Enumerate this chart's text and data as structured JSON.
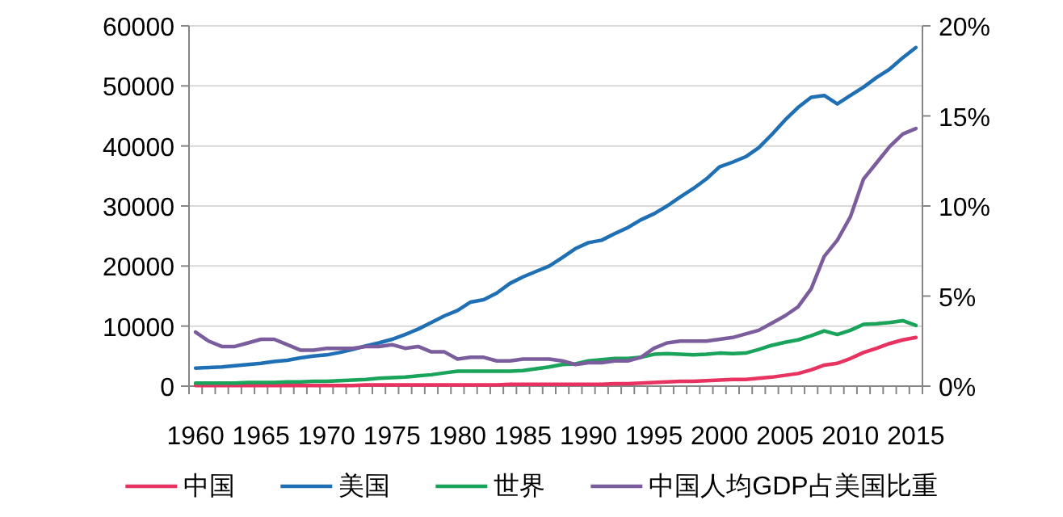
{
  "chart_data": {
    "type": "line",
    "categories": [
      "1960",
      null,
      null,
      null,
      null,
      "1965",
      null,
      null,
      null,
      null,
      "1970",
      null,
      null,
      null,
      null,
      "1975",
      null,
      null,
      null,
      null,
      "1980",
      null,
      null,
      null,
      null,
      "1985",
      null,
      null,
      null,
      null,
      "1990",
      null,
      null,
      null,
      null,
      "1995",
      null,
      null,
      null,
      null,
      "2000",
      null,
      null,
      null,
      null,
      "2005",
      null,
      null,
      null,
      null,
      "2010",
      null,
      null,
      null,
      null,
      "2015"
    ],
    "series": [
      {
        "name": "中国",
        "color": "#e8325f",
        "values": [
          100,
          100,
          100,
          100,
          100,
          100,
          100,
          100,
          100,
          100,
          100,
          100,
          100,
          200,
          200,
          200,
          200,
          200,
          200,
          200,
          200,
          200,
          200,
          200,
          300,
          300,
          300,
          300,
          300,
          300,
          300,
          300,
          400,
          400,
          500,
          600,
          700,
          800,
          800,
          900,
          1000,
          1100,
          1100,
          1300,
          1500,
          1800,
          2100,
          2700,
          3500,
          3800,
          4600,
          5600,
          6300,
          7100,
          7700,
          8100
        ]
      },
      {
        "name": "美国",
        "color": "#1f6fb4",
        "values": [
          3000,
          3100,
          3200,
          3400,
          3600,
          3800,
          4100,
          4300,
          4700,
          5000,
          5200,
          5600,
          6100,
          6700,
          7200,
          7800,
          8600,
          9500,
          10600,
          11700,
          12600,
          14000,
          14400,
          15500,
          17100,
          18200,
          19100,
          20000,
          21400,
          22900,
          23900,
          24300,
          25400,
          26400,
          27700,
          28700,
          30000,
          31500,
          32900,
          34500,
          36500,
          37300,
          38200,
          39700,
          41900,
          44300,
          46400,
          48100,
          48400,
          47000,
          48400,
          49800,
          51400,
          52800,
          54700,
          56400
        ]
      },
      {
        "name": "世界",
        "color": "#1aa35a",
        "values": [
          500,
          500,
          500,
          500,
          600,
          600,
          600,
          700,
          700,
          800,
          800,
          900,
          1000,
          1100,
          1300,
          1400,
          1500,
          1700,
          1900,
          2200,
          2500,
          2500,
          2500,
          2500,
          2500,
          2600,
          2900,
          3200,
          3600,
          3700,
          4200,
          4400,
          4600,
          4600,
          4800,
          5300,
          5400,
          5300,
          5200,
          5300,
          5500,
          5400,
          5500,
          6100,
          6800,
          7300,
          7700,
          8400,
          9200,
          8600,
          9300,
          10300,
          10400,
          10600,
          10900,
          10100
        ]
      },
      {
        "name": "中国人均GDP占美国比重",
        "color": "#7b5c9c",
        "axis": "y2",
        "values": [
          3.0,
          2.5,
          2.2,
          2.2,
          2.4,
          2.6,
          2.6,
          2.3,
          2.0,
          2.0,
          2.1,
          2.1,
          2.1,
          2.2,
          2.2,
          2.3,
          2.1,
          2.2,
          1.9,
          1.9,
          1.5,
          1.6,
          1.6,
          1.4,
          1.4,
          1.5,
          1.5,
          1.5,
          1.4,
          1.2,
          1.3,
          1.3,
          1.4,
          1.4,
          1.6,
          2.1,
          2.4,
          2.5,
          2.5,
          2.5,
          2.6,
          2.7,
          2.9,
          3.1,
          3.5,
          3.9,
          4.4,
          5.4,
          7.2,
          8.1,
          9.4,
          11.5,
          12.4,
          13.3,
          14.0,
          14.3
        ]
      }
    ],
    "ylim": [
      0,
      60000
    ],
    "yticks": [
      0,
      10000,
      20000,
      30000,
      40000,
      50000,
      60000
    ],
    "y2lim": [
      0,
      20
    ],
    "y2ticks": [
      {
        "value": 0,
        "label": "0%"
      },
      {
        "value": 5,
        "label": "5%"
      },
      {
        "value": 10,
        "label": "10%"
      },
      {
        "value": 15,
        "label": "15%"
      },
      {
        "value": 20,
        "label": "20%"
      }
    ],
    "grid": "y",
    "legend": "bottom"
  }
}
